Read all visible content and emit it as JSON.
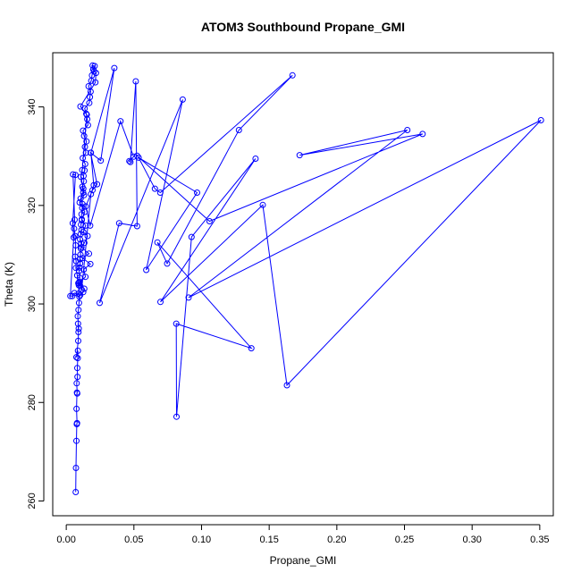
{
  "chart_data": {
    "type": "line",
    "title": "ATOM3 Southbound Propane_GMI",
    "xlabel": "Propane_GMI",
    "ylabel": "Theta (K)",
    "xlim": [
      -0.01,
      0.36
    ],
    "ylim": [
      257,
      351
    ],
    "xticks": [
      0.0,
      0.05,
      0.1,
      0.15,
      0.2,
      0.25,
      0.3,
      0.35
    ],
    "xtick_labels": [
      "0.00",
      "0.05",
      "0.10",
      "0.15",
      "0.20",
      "0.25",
      "0.30",
      "0.35"
    ],
    "yticks": [
      260,
      280,
      300,
      320,
      340
    ],
    "ytick_labels": [
      "260",
      "280",
      "300",
      "320",
      "340"
    ],
    "grid": false,
    "color": "#0000ff",
    "marker": "open-circle",
    "series": [
      {
        "x": [
          0.007,
          0.0072,
          0.0075,
          0.0078,
          0.008,
          0.0076,
          0.0079,
          0.0081,
          0.0077,
          0.0083,
          0.0082,
          0.0085,
          0.0086,
          0.0075,
          0.0088,
          0.009,
          0.0087,
          0.0092,
          0.0085,
          0.009,
          0.0094,
          0.0096,
          0.0091,
          0.0093,
          0.0097,
          0.01,
          0.0095,
          0.0098,
          0.0103,
          0.0101,
          0.0105,
          0.0108,
          0.011,
          0.0102,
          0.0107,
          0.0112,
          0.0109,
          0.0115,
          0.0113,
          0.0118,
          0.012,
          0.0106,
          0.0125,
          0.0119,
          0.013,
          0.0128,
          0.0135,
          0.014,
          0.0122,
          0.0145,
          0.0138,
          0.015,
          0.0132,
          0.0124,
          0.016,
          0.0155,
          0.0148,
          0.0136,
          0.017,
          0.0175,
          0.018,
          0.0165,
          0.0185,
          0.019,
          0.02,
          0.0195,
          0.021,
          0.0205,
          0.022,
          0.0215,
          0.0105,
          0.0152,
          0.0118,
          0.0108,
          0.0126,
          0.0131,
          0.0099,
          0.0137,
          0.0115,
          0.0143,
          0.0126,
          0.0158,
          0.0134,
          0.0112,
          0.0168,
          0.0121,
          0.0178,
          0.0129,
          0.0142,
          0.0095,
          0.0133,
          0.0125,
          0.0103,
          0.006,
          0.0045,
          0.003,
          0.0055,
          0.0048,
          0.0068,
          0.005,
          0.0062,
          0.0058,
          0.0065,
          0.007,
          0.0066,
          0.0073,
          0.0071,
          0.0081,
          0.0089,
          0.0104,
          0.0114,
          0.0182,
          0.0203,
          0.0182,
          0.0355,
          0.0255,
          0.018,
          0.0228,
          0.0194,
          0.0144,
          0.0177,
          0.0401,
          0.0498,
          0.0466,
          0.0474,
          0.0514,
          0.0524,
          0.0391,
          0.0247,
          0.0861,
          0.0591,
          0.0967,
          0.0535,
          0.0655,
          0.0695,
          0.1672,
          0.1276,
          0.0746,
          0.0674,
          0.1368,
          0.0813,
          0.0815,
          0.0926,
          0.1399,
          0.0696,
          0.1453,
          0.1631,
          0.3509,
          0.0904,
          0.2521,
          0.1725,
          0.2634,
          0.1059,
          0.0524
        ],
        "y": [
          261.8,
          266.7,
          272.2,
          275.6,
          275.8,
          278.7,
          282.0,
          281.8,
          283.9,
          285.2,
          287.0,
          289.0,
          290.5,
          289.2,
          292.5,
          294.3,
          296.0,
          295.0,
          297.5,
          298.8,
          300.2,
          301.5,
          302.1,
          303.8,
          304.5,
          305.3,
          306.7,
          307.4,
          308.2,
          309.1,
          310.0,
          311.2,
          312.3,
          313.1,
          314.2,
          315.0,
          316.1,
          317.0,
          318.2,
          319.5,
          320.3,
          321.4,
          322.6,
          323.8,
          324.9,
          326.0,
          327.1,
          328.4,
          329.6,
          330.7,
          331.9,
          333.0,
          334.1,
          335.2,
          336.3,
          337.5,
          338.6,
          339.7,
          340.8,
          342.0,
          343.1,
          344.2,
          345.3,
          346.4,
          347.6,
          348.4,
          348.3,
          347.2,
          346.9,
          345.0,
          340.1,
          338.4,
          327.2,
          325.8,
          323.4,
          322.1,
          320.6,
          318.7,
          317.2,
          315.9,
          314.6,
          313.8,
          312.4,
          311.5,
          310.2,
          309.3,
          308.1,
          307.0,
          305.5,
          304.2,
          303.1,
          302.4,
          301.8,
          302.2,
          301.6,
          301.6,
          313.5,
          316.4,
          326.2,
          326.3,
          317.1,
          315.3,
          313.8,
          311.9,
          309.6,
          308.7,
          307.3,
          305.8,
          304.2,
          303.6,
          302.9,
          322.3,
          324.1,
          330.7,
          347.9,
          329.1,
          330.7,
          324.3,
          323.1,
          319.8,
          315.9,
          337.1,
          329.9,
          329.0,
          328.8,
          345.2,
          315.8,
          316.4,
          300.2,
          341.5,
          306.9,
          322.6,
          329.7,
          323.4,
          322.6,
          346.4,
          335.3,
          308.2,
          312.5,
          291.0,
          296.0,
          277.1,
          313.6,
          329.5,
          300.4,
          320.1,
          283.5,
          337.3,
          301.3,
          335.3,
          330.2,
          334.5,
          316.8,
          330.1
        ]
      }
    ]
  }
}
